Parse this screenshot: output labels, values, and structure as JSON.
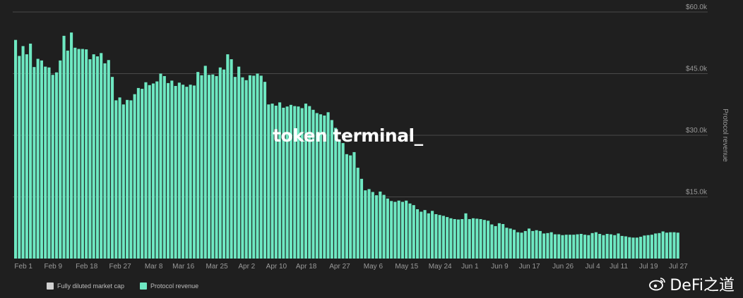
{
  "chart_data": {
    "type": "bar",
    "ylabel": "Protocol revenue",
    "ylim": [
      0,
      60000
    ],
    "yticks": [
      "$60.0k",
      "$45.0k",
      "$30.0k",
      "$15.0k"
    ],
    "ytick_values": [
      60000,
      45000,
      30000,
      15000
    ],
    "xticks": [
      {
        "label": "Feb 1",
        "index": 2
      },
      {
        "label": "Feb 9",
        "index": 10
      },
      {
        "label": "Feb 18",
        "index": 19
      },
      {
        "label": "Feb 27",
        "index": 28
      },
      {
        "label": "Mar 8",
        "index": 37
      },
      {
        "label": "Mar 16",
        "index": 45
      },
      {
        "label": "Mar 25",
        "index": 54
      },
      {
        "label": "Apr 2",
        "index": 62
      },
      {
        "label": "Apr 10",
        "index": 70
      },
      {
        "label": "Apr 18",
        "index": 78
      },
      {
        "label": "Apr 27",
        "index": 87
      },
      {
        "label": "May 6",
        "index": 96
      },
      {
        "label": "May 15",
        "index": 105
      },
      {
        "label": "May 24",
        "index": 114
      },
      {
        "label": "Jun 1",
        "index": 122
      },
      {
        "label": "Jun 9",
        "index": 130
      },
      {
        "label": "Jun 17",
        "index": 138
      },
      {
        "label": "Jun 26",
        "index": 147
      },
      {
        "label": "Jul 4",
        "index": 155
      },
      {
        "label": "Jul 11",
        "index": 162
      },
      {
        "label": "Jul 19",
        "index": 170
      },
      {
        "label": "Jul 27",
        "index": 178
      }
    ],
    "series": [
      {
        "name": "Protocol revenue",
        "values": [
          53200,
          49300,
          51700,
          49700,
          52300,
          46600,
          48600,
          48200,
          46700,
          46500,
          44700,
          45300,
          48200,
          54200,
          50600,
          55000,
          51300,
          51000,
          51000,
          50900,
          48500,
          49700,
          49200,
          50000,
          47500,
          48300,
          44200,
          38500,
          39200,
          37500,
          38600,
          38500,
          40000,
          41500,
          41300,
          42900,
          42200,
          42600,
          43100,
          45000,
          44400,
          42700,
          43300,
          42000,
          42800,
          42300,
          41800,
          42300,
          42100,
          45400,
          44600,
          46900,
          44700,
          44800,
          44400,
          46500,
          46000,
          49700,
          48500,
          44200,
          46700,
          44100,
          43400,
          44600,
          44500,
          45000,
          44500,
          43000,
          37500,
          37700,
          37200,
          38000,
          36700,
          37000,
          37400,
          37100,
          37000,
          36600,
          37700,
          37100,
          36200,
          35400,
          35100,
          34800,
          35600,
          33700,
          31800,
          28800,
          28100,
          25400,
          25100,
          25900,
          22100,
          19400,
          16600,
          16900,
          16200,
          15400,
          16300,
          15500,
          14600,
          14000,
          13800,
          14100,
          13800,
          14100,
          13400,
          13000,
          12000,
          11400,
          11800,
          11000,
          11600,
          10800,
          10600,
          10400,
          10100,
          9800,
          9600,
          9500,
          9600,
          11000,
          9600,
          9800,
          9700,
          9600,
          9400,
          9200,
          8300,
          7900,
          8600,
          8400,
          7500,
          7300,
          7000,
          6400,
          6300,
          6700,
          7300,
          6700,
          6900,
          6700,
          6100,
          6200,
          6400,
          5900,
          5900,
          5700,
          5800,
          5800,
          5800,
          5900,
          6000,
          5800,
          5700,
          6200,
          6400,
          6000,
          5700,
          6000,
          5900,
          5700,
          6100,
          5500,
          5400,
          5200,
          5100,
          5100,
          5300,
          5600,
          5700,
          5800,
          6100,
          6200,
          6600,
          6300,
          6400,
          6400,
          6300
        ]
      }
    ],
    "legend": [
      {
        "label": "Fully diluted market cap",
        "color": "#d0d0d0"
      },
      {
        "label": "Protocol revenue",
        "color": "#6ee8c2"
      }
    ],
    "legend_position": "bottom-left",
    "grid": true
  },
  "watermark": "token terminal_",
  "source_mark": "DeFi之道",
  "colors": {
    "background": "#1f1f1f",
    "bar": "#6ee8c2",
    "grid": "#4a4a4a"
  }
}
